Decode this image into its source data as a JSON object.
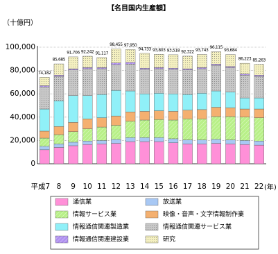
{
  "chart_data": {
    "type": "stacked-bar",
    "title": "【名目国内生産額】",
    "y_label": "（十億円）",
    "x_unit": "(年)",
    "categories": [
      "平成7",
      "8",
      "9",
      "10",
      "11",
      "12",
      "13",
      "14",
      "15",
      "16",
      "17",
      "18",
      "19",
      "20",
      "21",
      "22"
    ],
    "series": [
      {
        "name": "通信業",
        "color": "#ff90d8",
        "pattern": "none",
        "values": [
          12000,
          14000,
          15500,
          16500,
          17000,
          17500,
          19000,
          19000,
          19000,
          18000,
          17000,
          17000,
          17500,
          17000,
          16500,
          16000
        ]
      },
      {
        "name": "放送業",
        "color": "#a8c8f4",
        "pattern": "none",
        "values": [
          3000,
          3000,
          3000,
          3000,
          3000,
          3500,
          3500,
          3500,
          3500,
          3500,
          3500,
          3500,
          3500,
          3500,
          3500,
          3500
        ]
      },
      {
        "name": "情報サービス業",
        "color": "#b8f088",
        "pattern": "hatch",
        "values": [
          7000,
          8000,
          9000,
          10500,
          11500,
          12000,
          14000,
          15000,
          15500,
          16000,
          18000,
          18000,
          19500,
          20000,
          20000,
          20000
        ]
      },
      {
        "name": "映像・音声・文字情報制作業",
        "color": "#f4b070",
        "pattern": "none",
        "values": [
          6000,
          7000,
          8000,
          8500,
          8000,
          8000,
          8000,
          7500,
          7500,
          7500,
          7500,
          8000,
          8000,
          7500,
          7000,
          7500
        ]
      },
      {
        "name": "情報通信関連製造業",
        "color": "#90f0f8",
        "pattern": "none",
        "values": [
          19000,
          22000,
          23000,
          20000,
          20000,
          22000,
          18000,
          15000,
          15000,
          15000,
          13500,
          14000,
          14000,
          13500,
          9500,
          9500
        ]
      },
      {
        "name": "情報通信関連サービス業",
        "color": "#c8c8c8",
        "pattern": "dots",
        "values": [
          19000,
          21000,
          22000,
          23000,
          22000,
          22000,
          23000,
          21000,
          21000,
          21000,
          21000,
          21000,
          22000,
          21000,
          19500,
          18500
        ]
      },
      {
        "name": "情報通信関連建設業",
        "color": "#b090f0",
        "pattern": "hatch",
        "values": [
          1000,
          1000,
          1000,
          1000,
          1000,
          1500,
          1500,
          1000,
          1000,
          1000,
          1000,
          1000,
          1000,
          1000,
          1000,
          1000
        ]
      },
      {
        "name": "研究",
        "color": "#f4f0c0",
        "pattern": "dots",
        "values": [
          7182,
          9685,
          10206,
          9742,
          8617,
          11955,
          10950,
          12733,
          11303,
          11518,
          10822,
          11243,
          10615,
          10184,
          9223,
          9263
        ]
      }
    ],
    "totals": [
      74182,
      85685,
      91706,
      92242,
      91117,
      98455,
      97950,
      94733,
      93803,
      93518,
      92322,
      93743,
      96115,
      93684,
      86223,
      85263
    ],
    "total_labels": [
      "74,182",
      "85,685",
      "91,706",
      "92,242",
      "91,117",
      "98,455",
      "97,950",
      "94,733",
      "93,803",
      "93,518",
      "92,322",
      "93,743",
      "96,115",
      "93,684",
      "86,223",
      "85,263"
    ],
    "ylim": [
      0,
      100000
    ],
    "yticks": [
      0,
      {
        "value": 20000,
        "label": "20,000"
      },
      {
        "value": 40000,
        "label": "40,000"
      },
      {
        "value": 60000,
        "label": "60,000"
      },
      {
        "value": 80000,
        "label": "80,000"
      },
      {
        "value": 100000,
        "label": "100,000"
      }
    ],
    "grid": true
  }
}
